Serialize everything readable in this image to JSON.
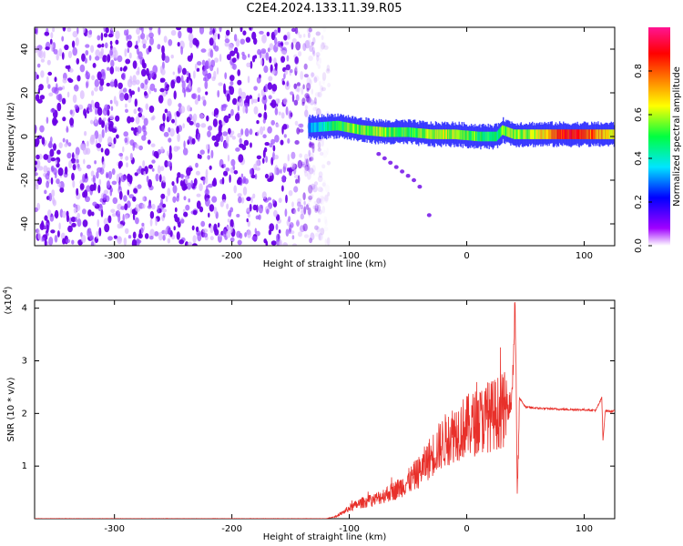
{
  "title": "C2E4.2024.133.11.39.R05",
  "colors": {
    "spectrogram_speckle": "#7a1fe0",
    "snr_line": "#e8302a",
    "colorbar": [
      "#ffffff",
      "#a000ff",
      "#0000ff",
      "#00e5ff",
      "#00ff40",
      "#ffff00",
      "#ff8000",
      "#ff0000",
      "#ff1493"
    ]
  },
  "chart_data": [
    {
      "type": "heatmap",
      "xlabel": "Height of straight line (km)",
      "ylabel": "Frequency (Hz)",
      "xlim": [
        -368,
        126
      ],
      "ylim": [
        -50,
        50
      ],
      "xticks": [
        -300,
        -200,
        -100,
        0,
        100
      ],
      "yticks": [
        -40,
        -20,
        0,
        20,
        40
      ],
      "noise_region_x": [
        -368,
        -125
      ],
      "ridge": {
        "x": [
          -135,
          -110,
          -90,
          -70,
          -50,
          -30,
          -10,
          10,
          25,
          30,
          40,
          60,
          80,
          100,
          126
        ],
        "freq": [
          4,
          5,
          3,
          2,
          2,
          1,
          1,
          0,
          0,
          3,
          1,
          1,
          1,
          1,
          1
        ],
        "amplitude": [
          0.3,
          0.5,
          0.55,
          0.55,
          0.5,
          0.6,
          0.6,
          0.5,
          0.45,
          0.55,
          0.55,
          0.6,
          0.85,
          0.85,
          0.6
        ]
      },
      "colorbar": {
        "label": "Normalized spectral amplitude",
        "range": [
          0,
          1
        ],
        "ticks": [
          "0.0",
          "0.2",
          "0.4",
          "0.6",
          "0.8"
        ]
      }
    },
    {
      "type": "line",
      "xlabel": "Height of straight line (km)",
      "ylabel": "SNR (10 * v/v)",
      "multiplier": "(x10",
      "multiplier_exp": "4",
      "xlim": [
        -368,
        126
      ],
      "ylim": [
        0,
        4.15
      ],
      "xticks": [
        -300,
        -200,
        -100,
        0,
        100
      ],
      "yticks": [
        1,
        2,
        3,
        4
      ],
      "envelope": {
        "x": [
          -368,
          -120,
          -110,
          -100,
          -90,
          -80,
          -70,
          -60,
          -50,
          -40,
          -30,
          -20,
          -10,
          0,
          10,
          20,
          30,
          35,
          38,
          40,
          41,
          42,
          43,
          45,
          50,
          60,
          80,
          100,
          110,
          115,
          116,
          118,
          126
        ],
        "y": [
          0.0,
          0.0,
          0.05,
          0.2,
          0.3,
          0.35,
          0.45,
          0.55,
          0.7,
          0.9,
          1.2,
          1.45,
          1.65,
          1.75,
          1.85,
          1.95,
          2.05,
          2.1,
          2.3,
          3.1,
          4.1,
          2.9,
          0.35,
          2.3,
          2.12,
          2.1,
          2.08,
          2.07,
          2.06,
          2.3,
          1.5,
          2.05,
          2.04
        ]
      }
    }
  ]
}
